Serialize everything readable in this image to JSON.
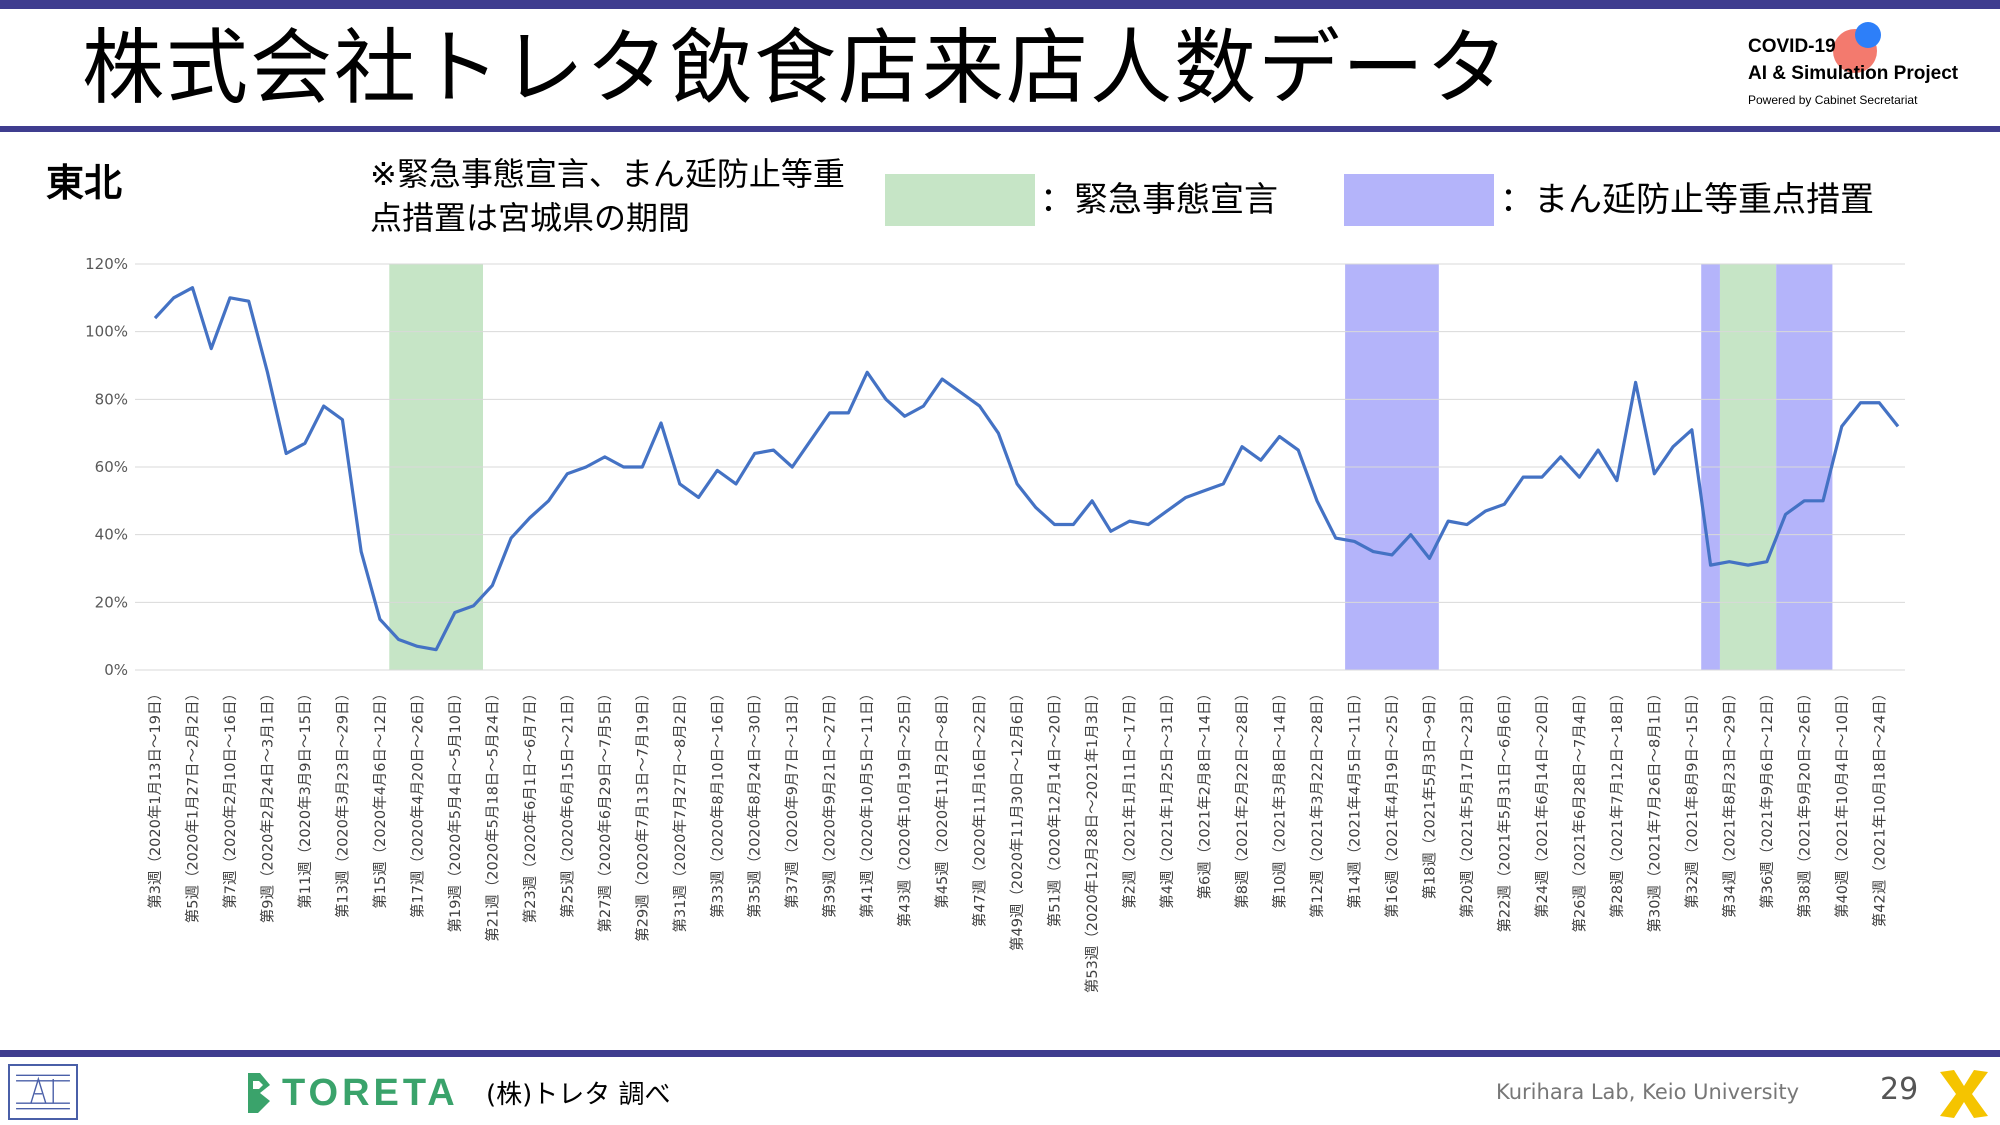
{
  "header": {
    "title": "株式会社トレタ飲食店来店人数データ",
    "logo": {
      "line1": "COVID-19",
      "line2": "AI & Simulation Project",
      "line3": "Powered by Cabinet Secretariat"
    }
  },
  "region": "東北",
  "note": "※緊急事態宣言、まん延防止等重点措置は宮城県の期間",
  "legend": [
    {
      "label": "：緊急事態宣言",
      "color": "#c6e5c6"
    },
    {
      "label": "：まん延防止等重点措置",
      "color": "#b4b4fa"
    }
  ],
  "chart_data": {
    "type": "line",
    "y_ticks": [
      "0%",
      "20%",
      "40%",
      "60%",
      "80%",
      "100%",
      "120%"
    ],
    "ylim": [
      0,
      1.2
    ],
    "grid": true,
    "line_color": "#4472c4",
    "categories": [
      "第3週（2020年1月13日～19日）",
      "",
      "第5週（2020年1月27日～2月2日）",
      "",
      "第7週（2020年2月10日～16日）",
      "",
      "第9週（2020年2月24日～3月1日）",
      "",
      "第11週（2020年3月9日～15日）",
      "",
      "第13週（2020年3月23日～29日）",
      "",
      "第15週（2020年4月6日～12日）",
      "",
      "第17週（2020年4月20日～26日）",
      "",
      "第19週（2020年5月4日～5月10日）",
      "",
      "第21週（2020年5月18日～5月24日）",
      "",
      "第23週（2020年6月1日～6月7日）",
      "",
      "第25週（2020年6月15日～21日）",
      "",
      "第27週（2020年6月29日～7月5日）",
      "",
      "第29週（2020年7月13日～7月19日）",
      "",
      "第31週（2020年7月27日～8月2日）",
      "",
      "第33週（2020年8月10日～16日）",
      "",
      "第35週（2020年8月24日～30日）",
      "",
      "第37週（2020年9月7日～13日）",
      "",
      "第39週（2020年9月21日～27日）",
      "",
      "第41週（2020年10月5日～11日）",
      "",
      "第43週（2020年10月19日～25日）",
      "",
      "第45週（2020年11月2日～8日）",
      "",
      "第47週（2020年11月16日～22日）",
      "",
      "第49週（2020年11月30日～12月6日）",
      "",
      "第51週（2020年12月14日～20日）",
      "",
      "第53週（2020年12月28日～2021年1月3日）",
      "",
      "第2週（2021年1月11日～17日）",
      "",
      "第4週（2021年1月25日～31日）",
      "",
      "第6週（2021年2月8日～14日）",
      "",
      "第8週（2021年2月22日～28日）",
      "",
      "第10週（2021年3月8日～14日）",
      "",
      "第12週（2021年3月22日～28日）",
      "",
      "第14週（2021年4月5日～11日）",
      "",
      "第16週（2021年4月19日～25日）",
      "",
      "第18週（2021年5月3日～9日）",
      "",
      "第20週（2021年5月17日～23日）",
      "",
      "第22週（2021年5月31日～6月6日）",
      "",
      "第24週（2021年6月14日～20日）",
      "",
      "第26週（2021年6月28日～7月4日）",
      "",
      "第28週（2021年7月12日～18日）",
      "",
      "第30週（2021年7月26日～8月1日）",
      "",
      "第32週（2021年8月9日～15日）",
      "",
      "第34週（2021年8月23日～29日）",
      "",
      "第36週（2021年9月6日～12日）",
      "",
      "第38週（2021年9月20日～26日）",
      "",
      "第40週（2021年10月4日～10日）",
      "",
      "第42週（2021年10月18日～24日）",
      ""
    ],
    "values": [
      1.04,
      1.1,
      1.13,
      0.95,
      1.1,
      1.09,
      0.88,
      0.64,
      0.67,
      0.78,
      0.74,
      0.35,
      0.15,
      0.09,
      0.07,
      0.06,
      0.17,
      0.19,
      0.25,
      0.39,
      0.45,
      0.5,
      0.58,
      0.6,
      0.63,
      0.6,
      0.6,
      0.73,
      0.55,
      0.51,
      0.59,
      0.55,
      0.64,
      0.65,
      0.6,
      0.68,
      0.76,
      0.76,
      0.88,
      0.8,
      0.75,
      0.78,
      0.86,
      0.82,
      0.78,
      0.7,
      0.55,
      0.48,
      0.43,
      0.43,
      0.5,
      0.41,
      0.44,
      0.43,
      0.47,
      0.51,
      0.53,
      0.55,
      0.66,
      0.62,
      0.69,
      0.65,
      0.5,
      0.39,
      0.38,
      0.35,
      0.34,
      0.4,
      0.33,
      0.44,
      0.43,
      0.47,
      0.49,
      0.57,
      0.57,
      0.63,
      0.57,
      0.65,
      0.56,
      0.85,
      0.58,
      0.66,
      0.71,
      0.31,
      0.32,
      0.31,
      0.32,
      0.46,
      0.5,
      0.5,
      0.72,
      0.79,
      0.79,
      0.72
    ],
    "shaded_periods": [
      {
        "type": "state_of_emergency",
        "start_index": 12.5,
        "end_index": 17.5,
        "color": "#c6e5c6"
      },
      {
        "type": "priority_measures",
        "start_index": 63.5,
        "end_index": 68.5,
        "color": "#b4b4fa"
      },
      {
        "type": "priority_measures",
        "start_index": 82.5,
        "end_index": 83.5,
        "color": "#b4b4fa"
      },
      {
        "type": "state_of_emergency",
        "start_index": 83.5,
        "end_index": 86.5,
        "color": "#c6e5c6"
      },
      {
        "type": "priority_measures",
        "start_index": 86.5,
        "end_index": 89.5,
        "color": "#b4b4fa"
      }
    ]
  },
  "footer": {
    "brand": "TORETA",
    "source": "(株)トレタ 調べ",
    "lab": "Kurihara Lab, Keio University",
    "page": "29"
  }
}
